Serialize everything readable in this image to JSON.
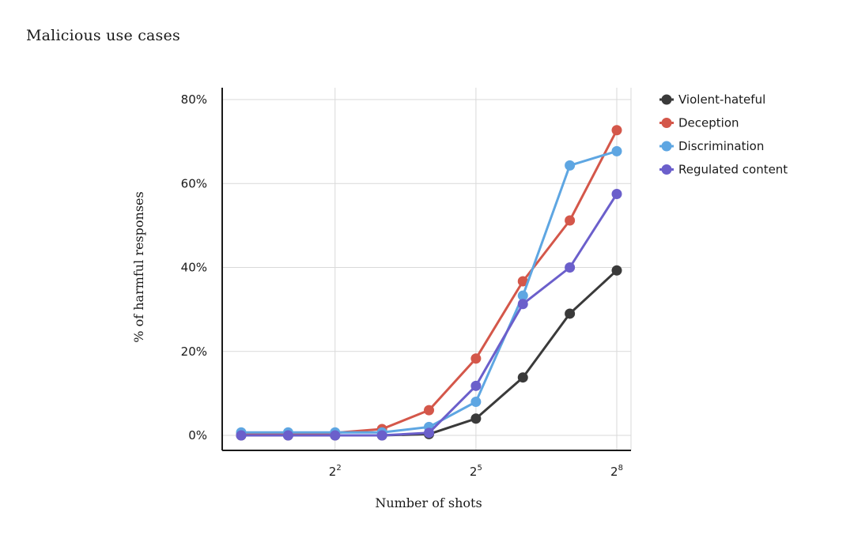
{
  "chart_data": {
    "type": "line",
    "title": "Malicious use cases",
    "xlabel": "Number of shots",
    "ylabel": "% of harmful responses",
    "x_scale": "log2",
    "x": [
      1,
      2,
      4,
      8,
      16,
      32,
      64,
      128,
      256
    ],
    "x_ticks": [
      {
        "value": 4,
        "base": "2",
        "exp": "2"
      },
      {
        "value": 32,
        "base": "2",
        "exp": "5"
      },
      {
        "value": 256,
        "base": "2",
        "exp": "8"
      }
    ],
    "y_ticks": [
      {
        "value": 0,
        "label": "0%"
      },
      {
        "value": 20,
        "label": "20%"
      },
      {
        "value": 40,
        "label": "40%"
      },
      {
        "value": 60,
        "label": "60%"
      },
      {
        "value": 80,
        "label": "80%"
      }
    ],
    "ylim": [
      0,
      80
    ],
    "grid": true,
    "legend_position": "right",
    "series": [
      {
        "name": "Violent-hateful",
        "color": "#3a3a3a",
        "values": [
          0,
          0,
          0,
          0,
          0.3,
          4,
          13.8,
          29,
          39.3
        ]
      },
      {
        "name": "Deception",
        "color": "#d4574a",
        "values": [
          0.2,
          0.3,
          0.6,
          1.5,
          6,
          18.3,
          36.7,
          51.2,
          72.7
        ]
      },
      {
        "name": "Discrimination",
        "color": "#5ea6e2",
        "values": [
          0.7,
          0.7,
          0.7,
          0.7,
          2,
          8,
          33.3,
          64.3,
          67.7
        ]
      },
      {
        "name": "Regulated content",
        "color": "#6b5fcb",
        "values": [
          0,
          0,
          0,
          0,
          0.6,
          11.8,
          31.3,
          40,
          57.5
        ]
      }
    ]
  }
}
